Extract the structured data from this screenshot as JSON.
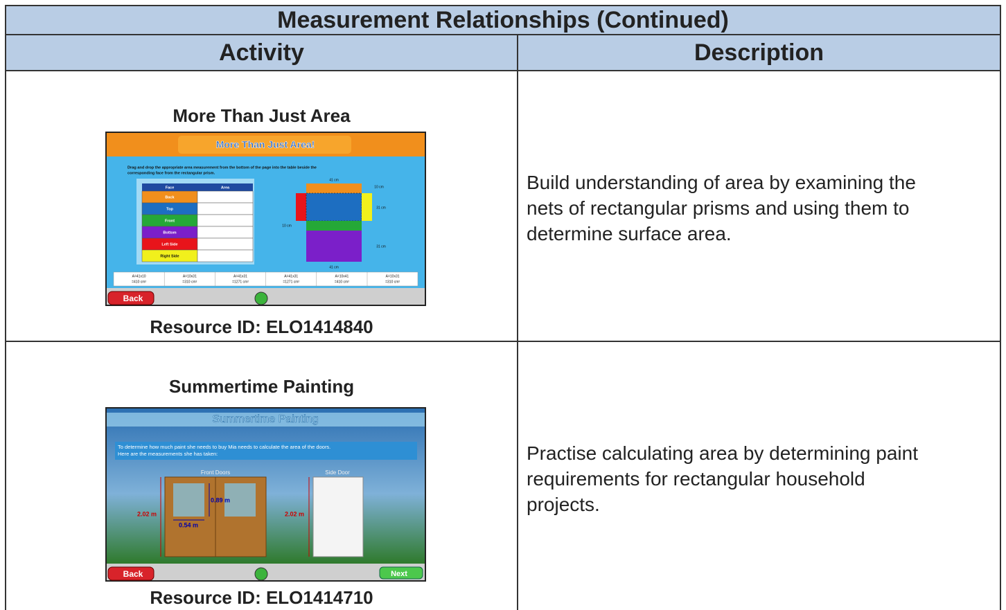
{
  "table": {
    "title": "Measurement Relationships (Continued)",
    "headers": [
      "Activity",
      "Description"
    ],
    "rows": [
      {
        "activity": "More Than Just Area",
        "resource_id": "Resource ID: ELO1414840",
        "description": [
          "Build understanding of area by examining the",
          "nets of rectangular prisms and using them to",
          "determine surface area."
        ],
        "screenshot": {
          "title": "More Than Just Area!",
          "instructions": [
            "Drag and drop the appropriate area measurement from the bottom of the page into the table beside the",
            "corresponding face from the rectangular prism."
          ],
          "table_headers": [
            "Face",
            "Area"
          ],
          "faces": [
            "Back",
            "Top",
            "Front",
            "Bottom",
            "Left Side",
            "Right Side"
          ],
          "net_labels": [
            "41 cm",
            "10 cm",
            "31 cm",
            "10 cm",
            "31 cm",
            "41 cm"
          ],
          "cards": [
            [
              "A=41x10",
              "=410 cm²"
            ],
            [
              "A=10x31",
              "=310 cm²"
            ],
            [
              "A=41x31",
              "=1271 cm²"
            ],
            [
              "A=41x31",
              "=1271 cm²"
            ],
            [
              "A=10x41",
              "=410 cm²"
            ],
            [
              "A=10x31",
              "=310 cm²"
            ]
          ],
          "back": "Back"
        }
      },
      {
        "activity": "Summertime Painting",
        "resource_id": "Resource ID: ELO1414710",
        "description": [
          "Practise calculating area by determining paint",
          "requirements for rectangular household",
          "projects."
        ],
        "screenshot": {
          "title": "Summertime Painting",
          "instructions": [
            "To determine how much paint she needs to buy Mia needs to calculate the area of the doors.",
            "Here are the measurements she has taken:"
          ],
          "front_doors": "Front Doors",
          "side_door": "Side Door",
          "measures": [
            "2.02 m",
            "0.89 m",
            "0.54 m",
            "2.02 m"
          ],
          "back": "Back",
          "next": "Next"
        }
      }
    ]
  }
}
